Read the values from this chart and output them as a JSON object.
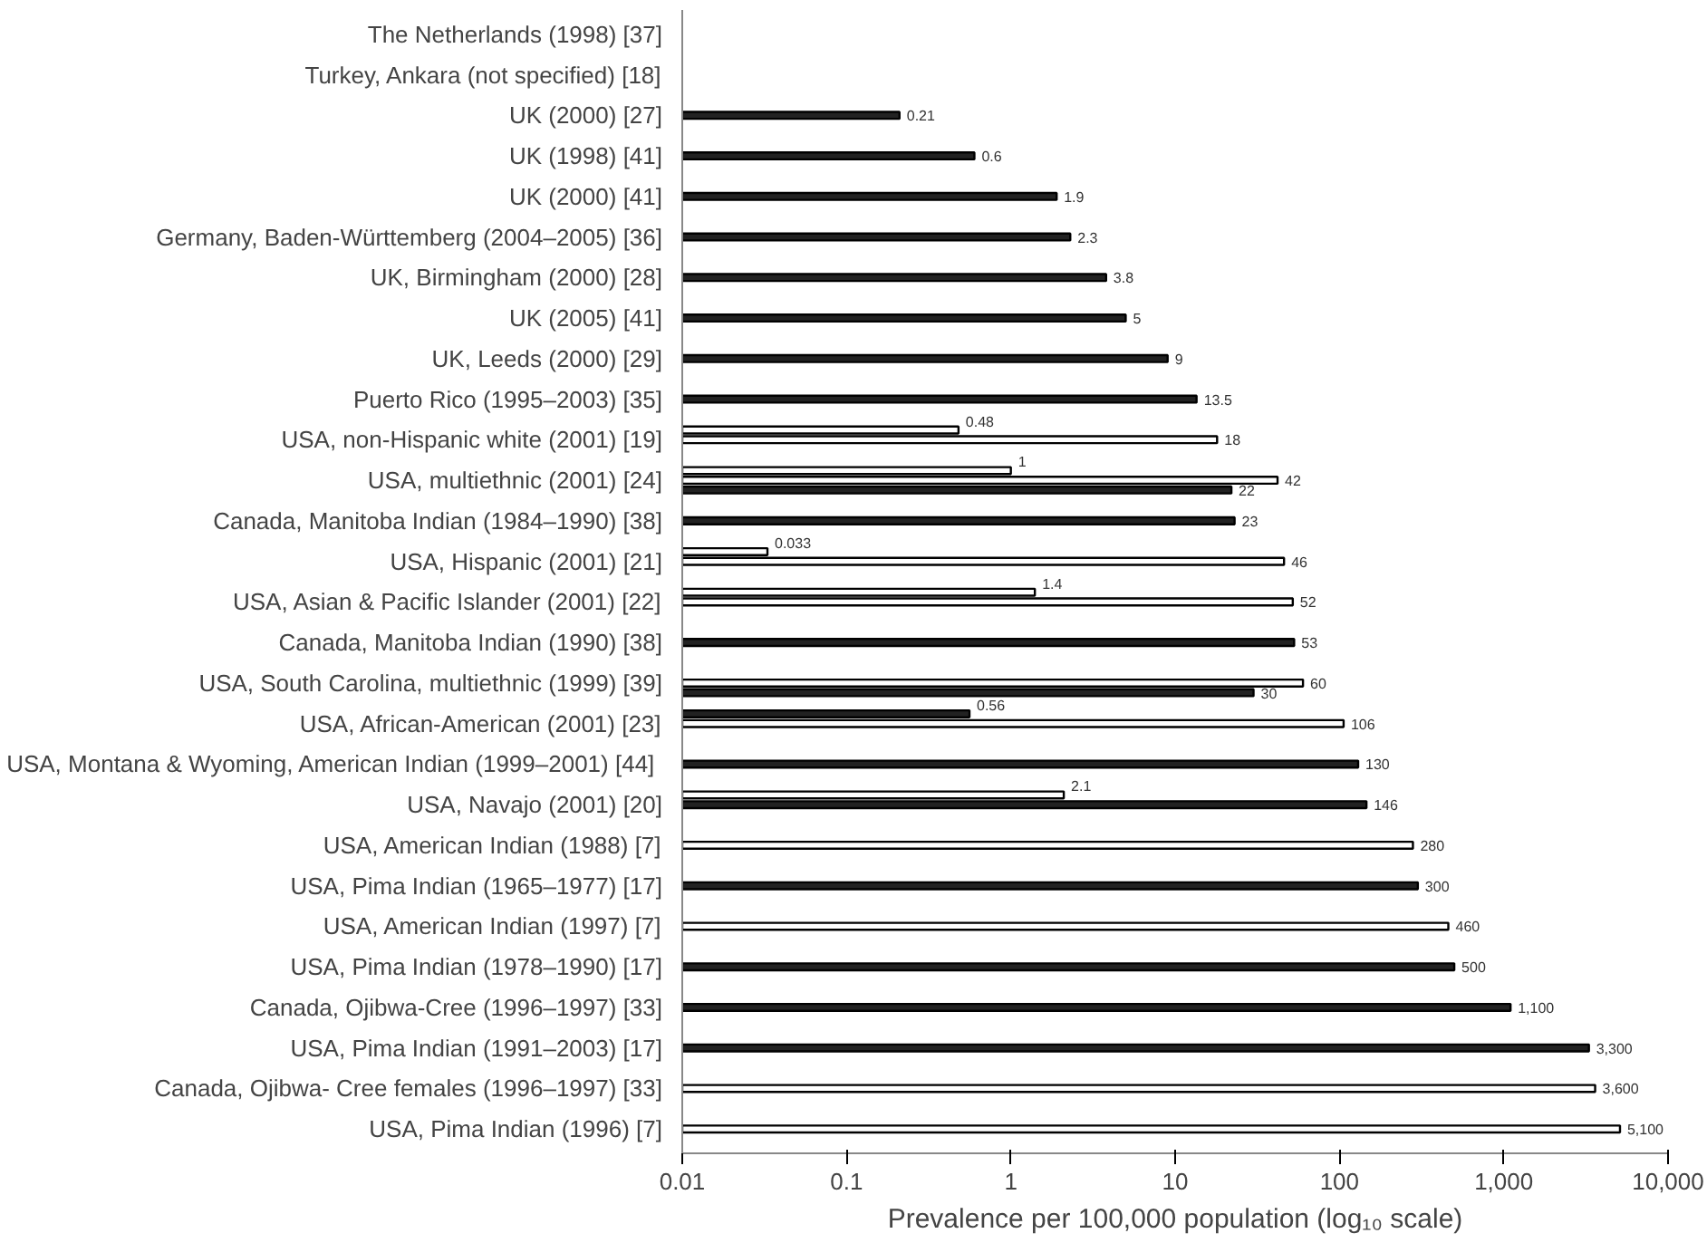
{
  "chart_data": {
    "type": "bar",
    "orientation": "horizontal",
    "log": "x",
    "grid": false,
    "xlabel": "Prevalence per 100,000 population (log₁₀ scale)",
    "xlim": [
      0.01,
      10000
    ],
    "xticks": [
      0.01,
      0.1,
      1,
      10,
      100,
      {
        "value": 1000,
        "label": "1,000"
      },
      {
        "value": 10000,
        "label": "10,000"
      }
    ],
    "categories": [
      "The Netherlands (1998) [37]",
      "Turkey, Ankara (not specified) [18]",
      "UK (2000) [27]",
      "UK (1998) [41]",
      "UK (2000) [41]",
      "Germany, Baden-Württemberg (2004–2005) [36]",
      "UK, Birmingham (2000) [28]",
      "UK (2005) [41]",
      "UK, Leeds (2000) [29]",
      "Puerto Rico (1995–2003) [35]",
      "USA, non-Hispanic white (2001) [19]",
      "USA, multiethnic (2001) [24]",
      "Canada, Manitoba Indian (1984–1990) [38]",
      "USA, Hispanic (2001) [21]",
      "USA, Asian & Pacific Islander (2001) [22]",
      "Canada, Manitoba Indian (1990) [38]",
      "USA, South Carolina, multiethnic (1999) [39]",
      "USA, African-American (2001) [23]",
      "USA, Montana & Wyoming, American Indian  (1999–2001) [44]",
      "USA, Navajo (2001) [20]",
      "USA, American Indian (1988) [7]",
      "USA, Pima Indian (1965–1977) [17]",
      "USA, American Indian (1997) [7]",
      "USA, Pima Indian (1978–1990) [17]",
      "Canada, Ojibwa-Cree (1996–1997) [33]",
      "USA, Pima Indian (1991–2003) [17]",
      "Canada, Ojibwa- Cree females (1996–1997) [33]",
      "USA, Pima Indian (1996) [7]"
    ],
    "series": [
      {
        "values": [
          null,
          null,
          null,
          null,
          null,
          null,
          null,
          null,
          null,
          null,
          0.48,
          1,
          null,
          0.033,
          1.4,
          null,
          null,
          0.56,
          null,
          2.1,
          null,
          null,
          null,
          null,
          null,
          null,
          null,
          null
        ],
        "colors": [
          null,
          null,
          null,
          null,
          null,
          null,
          null,
          null,
          null,
          null,
          "#ffffff",
          "#ffffff",
          null,
          "#ffffff",
          "#ffffff",
          null,
          null,
          "#222222",
          null,
          "#ffffff",
          null,
          null,
          null,
          null,
          null,
          null,
          null,
          null
        ],
        "value_labels": [
          null,
          null,
          null,
          null,
          null,
          null,
          null,
          null,
          null,
          null,
          "0.48",
          "1",
          null,
          "0.033",
          "1.4",
          null,
          null,
          "0.56",
          null,
          "2.1",
          null,
          null,
          null,
          null,
          null,
          null,
          null,
          null
        ]
      },
      {
        "values": [
          null,
          null,
          0.21,
          0.6,
          1.9,
          2.3,
          3.8,
          5,
          9,
          13.5,
          18,
          42,
          23,
          46,
          52,
          53,
          60,
          106,
          130,
          146,
          280,
          300,
          460,
          500,
          1100,
          3300,
          3600,
          5100
        ],
        "colors": [
          null,
          null,
          "#222222",
          "#222222",
          "#222222",
          "#222222",
          "#222222",
          "#222222",
          "#222222",
          "#222222",
          "#ffffff",
          "#ffffff",
          "#222222",
          "#ffffff",
          "#ffffff",
          "#222222",
          "#ffffff",
          "#ffffff",
          "#222222",
          "#222222",
          "#ffffff",
          "#222222",
          "#ffffff",
          "#222222",
          "#222222",
          "#222222",
          "#ffffff",
          "#ffffff"
        ],
        "value_labels": [
          null,
          null,
          "0.21",
          "0.6",
          "1.9",
          "2.3",
          "3.8",
          "5",
          "9",
          "13.5",
          "18",
          "42",
          "23",
          "46",
          "52",
          "53",
          "60",
          "106",
          "130",
          "146",
          "280",
          "300",
          "460",
          "500",
          "1,100",
          "3,300",
          "3,600",
          "5,100"
        ]
      },
      {
        "values": [
          null,
          null,
          null,
          null,
          null,
          null,
          null,
          null,
          null,
          null,
          null,
          22,
          null,
          null,
          null,
          null,
          30,
          null,
          null,
          null,
          null,
          null,
          null,
          null,
          null,
          null,
          null,
          null
        ],
        "colors": [
          null,
          null,
          null,
          null,
          null,
          null,
          null,
          null,
          null,
          null,
          null,
          "#222222",
          null,
          null,
          null,
          null,
          "#222222",
          null,
          null,
          null,
          null,
          null,
          null,
          null,
          null,
          null,
          null,
          null
        ],
        "value_labels": [
          null,
          null,
          null,
          null,
          null,
          null,
          null,
          null,
          null,
          null,
          null,
          "22",
          null,
          null,
          null,
          null,
          "30",
          null,
          null,
          null,
          null,
          null,
          null,
          null,
          null,
          null,
          null,
          null
        ]
      }
    ]
  }
}
